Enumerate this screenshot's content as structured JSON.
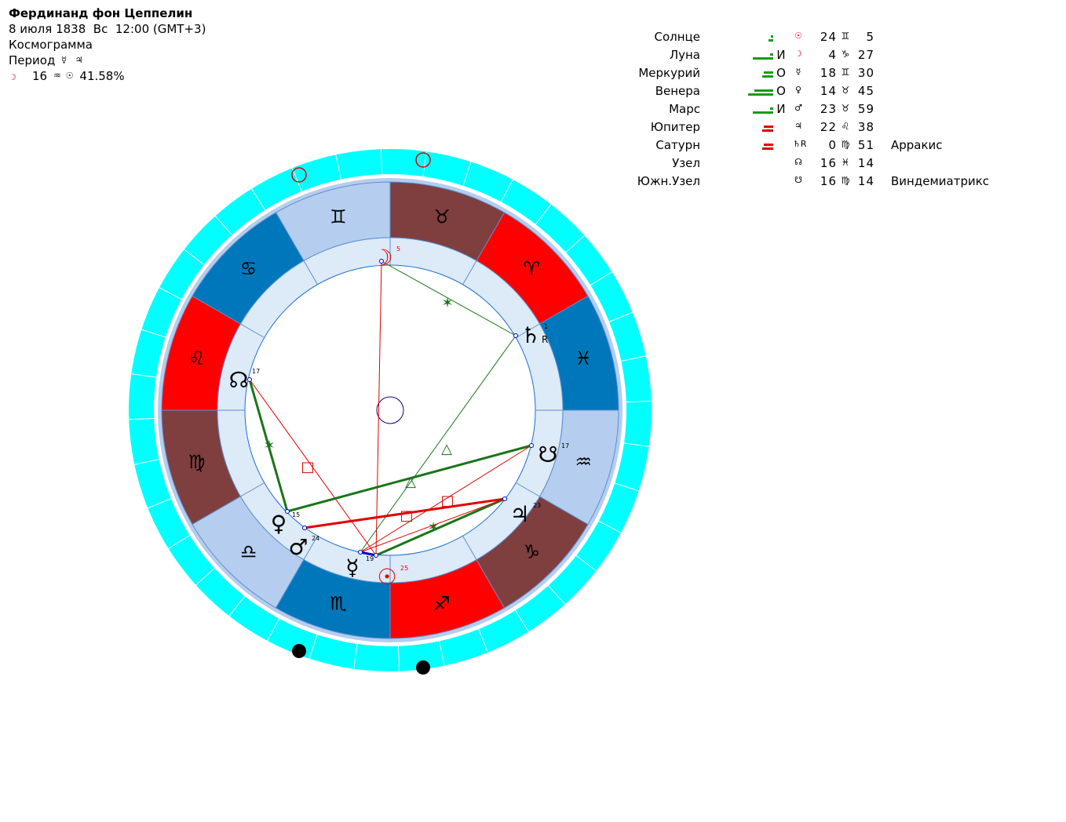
{
  "header": {
    "title": "Фердинанд фон Цеппелин",
    "date": "8 июля 1838",
    "weekday": "Вс",
    "time": "12:00 (GMT+3)",
    "chart_type": "Космограмма",
    "period_label": "Период",
    "period_glyphs": [
      "☿",
      "♃"
    ],
    "moon_line": {
      "glyph": "☽",
      "value": "16",
      "glyph2": "♒",
      "glyph3": "☉",
      "percent": "41.58%"
    }
  },
  "planets": [
    {
      "name": "Солнце",
      "condition": "",
      "glyph": "☉",
      "deg": "24",
      "sign": "♊",
      "min": "5",
      "star": "",
      "bar_color": "#199a19",
      "bar_level": 1
    },
    {
      "name": "Луна",
      "condition": "И",
      "glyph": "☽",
      "deg": "4",
      "sign": "♑",
      "min": "27",
      "star": "",
      "bar_color": "#199a19",
      "bar_level": 3
    },
    {
      "name": "Меркурий",
      "condition": "О",
      "glyph": "☿",
      "deg": "18",
      "sign": "♊",
      "min": "30",
      "star": "",
      "bar_color": "#199a19",
      "bar_level": 2
    },
    {
      "name": "Венера",
      "condition": "О",
      "glyph": "♀",
      "deg": "14",
      "sign": "♉",
      "min": "45",
      "star": "",
      "bar_color": "#199a19",
      "bar_level": 4
    },
    {
      "name": "Марс",
      "condition": "И",
      "glyph": "♂",
      "deg": "23",
      "sign": "♉",
      "min": "59",
      "star": "",
      "bar_color": "#199a19",
      "bar_level": 3
    },
    {
      "name": "Юпитер",
      "condition": "",
      "glyph": "♃",
      "deg": "22",
      "sign": "♌",
      "min": "38",
      "star": "",
      "bar_color": "#e00000",
      "bar_level": 2
    },
    {
      "name": "Сатурн",
      "condition": "",
      "glyph": "♄R",
      "deg": "0",
      "sign": "♍",
      "min": "51",
      "star": "Арракис",
      "bar_color": "#e00000",
      "bar_level": 2
    },
    {
      "name": "Узел",
      "condition": "",
      "glyph": "☊",
      "deg": "16",
      "sign": "♓",
      "min": "14",
      "star": "",
      "bar_color": "",
      "bar_level": 0
    },
    {
      "name": "Южн.Узел",
      "condition": "",
      "glyph": "☋",
      "deg": "16",
      "sign": "♍",
      "min": "14",
      "star": "Виндемиатрикс",
      "bar_color": "",
      "bar_level": 0
    }
  ],
  "wheel": {
    "zodiac_signs": [
      {
        "sign": "♈",
        "color": "#ff0000"
      },
      {
        "sign": "♉",
        "color": "#7f3f3f"
      },
      {
        "sign": "♊",
        "color": "#b5cdee"
      },
      {
        "sign": "♋",
        "color": "#0077bb"
      },
      {
        "sign": "♌",
        "color": "#ff0000"
      },
      {
        "sign": "♍",
        "color": "#7f3f3f"
      },
      {
        "sign": "♎",
        "color": "#b5cdee"
      },
      {
        "sign": "♏",
        "color": "#0077bb"
      },
      {
        "sign": "♐",
        "color": "#ff0000"
      },
      {
        "sign": "♑",
        "color": "#7f3f3f"
      },
      {
        "sign": "♒",
        "color": "#b5cdee"
      },
      {
        "sign": "♓",
        "color": "#0077bb"
      }
    ],
    "outer_ring_color": "#00ffff",
    "inner_ring_color": "#ddeaf7",
    "planet_markers": [
      {
        "glyph": "☽",
        "degree": "5",
        "color": "#e00000"
      },
      {
        "glyph": "♄",
        "degree": "1",
        "retro": "R",
        "color": "#000000"
      },
      {
        "glyph": "☊",
        "degree": "17",
        "color": "#000000"
      },
      {
        "glyph": "☋",
        "degree": "17",
        "color": "#000000"
      },
      {
        "glyph": "♃",
        "degree": "23",
        "color": "#000000"
      },
      {
        "glyph": "☉",
        "degree": "25",
        "color": "#e00000"
      },
      {
        "glyph": "☿",
        "degree": "19",
        "color": "#000000"
      },
      {
        "glyph": "♂",
        "degree": "24",
        "color": "#000000"
      },
      {
        "glyph": "♀",
        "degree": "15",
        "color": "#000000"
      }
    ],
    "aspect_glyphs": {
      "sextile": "✶",
      "trine": "△",
      "square": "□"
    }
  }
}
